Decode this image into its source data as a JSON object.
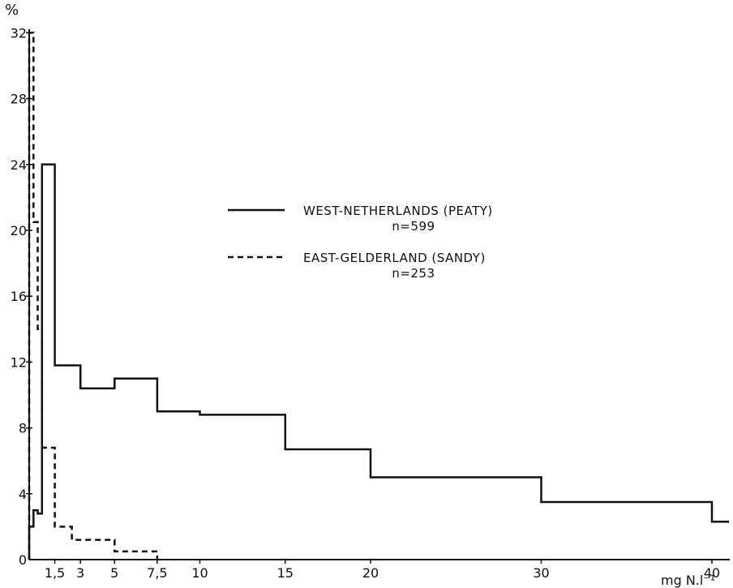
{
  "chart_data": {
    "type": "line",
    "title": "",
    "ylabel": "%",
    "xlabel": "mg N.l⁻¹",
    "xlim": [
      0,
      41
    ],
    "ylim": [
      0,
      32
    ],
    "x_ticks": [
      {
        "value": 1.5,
        "label": "1,5"
      },
      {
        "value": 3,
        "label": "3"
      },
      {
        "value": 5,
        "label": "5"
      },
      {
        "value": 7.5,
        "label": "7,5"
      },
      {
        "value": 10,
        "label": "10"
      },
      {
        "value": 15,
        "label": "15"
      },
      {
        "value": 20,
        "label": "20"
      },
      {
        "value": 30,
        "label": "30"
      },
      {
        "value": 40,
        "label": "40"
      }
    ],
    "y_ticks": [
      {
        "value": 0,
        "label": "0"
      },
      {
        "value": 4,
        "label": "4"
      },
      {
        "value": 8,
        "label": "8"
      },
      {
        "value": 12,
        "label": "12"
      },
      {
        "value": 16,
        "label": "16"
      },
      {
        "value": 20,
        "label": "20"
      },
      {
        "value": 24,
        "label": "24"
      },
      {
        "value": 28,
        "label": "28"
      },
      {
        "value": 32,
        "label": "32"
      }
    ],
    "grid": false,
    "legend_position": "center-right",
    "series": [
      {
        "name": "WEST-NETHERLANDS (PEATY)",
        "n_label": "n=599",
        "style": "solid",
        "color": "#111111",
        "points": [
          [
            0,
            0
          ],
          [
            0,
            2
          ],
          [
            0.25,
            2
          ],
          [
            0.25,
            3
          ],
          [
            0.5,
            3
          ],
          [
            0.5,
            2.8
          ],
          [
            0.75,
            2.8
          ],
          [
            0.75,
            24
          ],
          [
            1.5,
            24
          ],
          [
            1.5,
            11.8
          ],
          [
            3,
            11.8
          ],
          [
            3,
            10.4
          ],
          [
            5,
            10.4
          ],
          [
            5,
            11
          ],
          [
            7.5,
            11
          ],
          [
            7.5,
            9
          ],
          [
            10,
            9
          ],
          [
            10,
            8.8
          ],
          [
            15,
            8.8
          ],
          [
            15,
            6.7
          ],
          [
            20,
            6.7
          ],
          [
            20,
            5
          ],
          [
            30,
            5
          ],
          [
            30,
            3.5
          ],
          [
            40,
            3.5
          ],
          [
            40,
            2.3
          ],
          [
            41,
            2.3
          ]
        ]
      },
      {
        "name": "EAST-GELDERLAND (SANDY)",
        "n_label": "n=253",
        "style": "dashed",
        "color": "#111111",
        "points": [
          [
            0,
            0
          ],
          [
            0,
            32
          ],
          [
            0.25,
            32
          ],
          [
            0.25,
            20.5
          ],
          [
            0.5,
            20.5
          ],
          [
            0.5,
            14
          ],
          [
            0.75,
            14
          ],
          [
            0.75,
            6.8
          ],
          [
            1.5,
            6.8
          ],
          [
            1.5,
            2
          ],
          [
            2.5,
            2
          ],
          [
            2.5,
            1.2
          ],
          [
            5,
            1.2
          ],
          [
            5,
            0.5
          ],
          [
            7.5,
            0.5
          ],
          [
            7.5,
            0
          ]
        ]
      }
    ]
  }
}
